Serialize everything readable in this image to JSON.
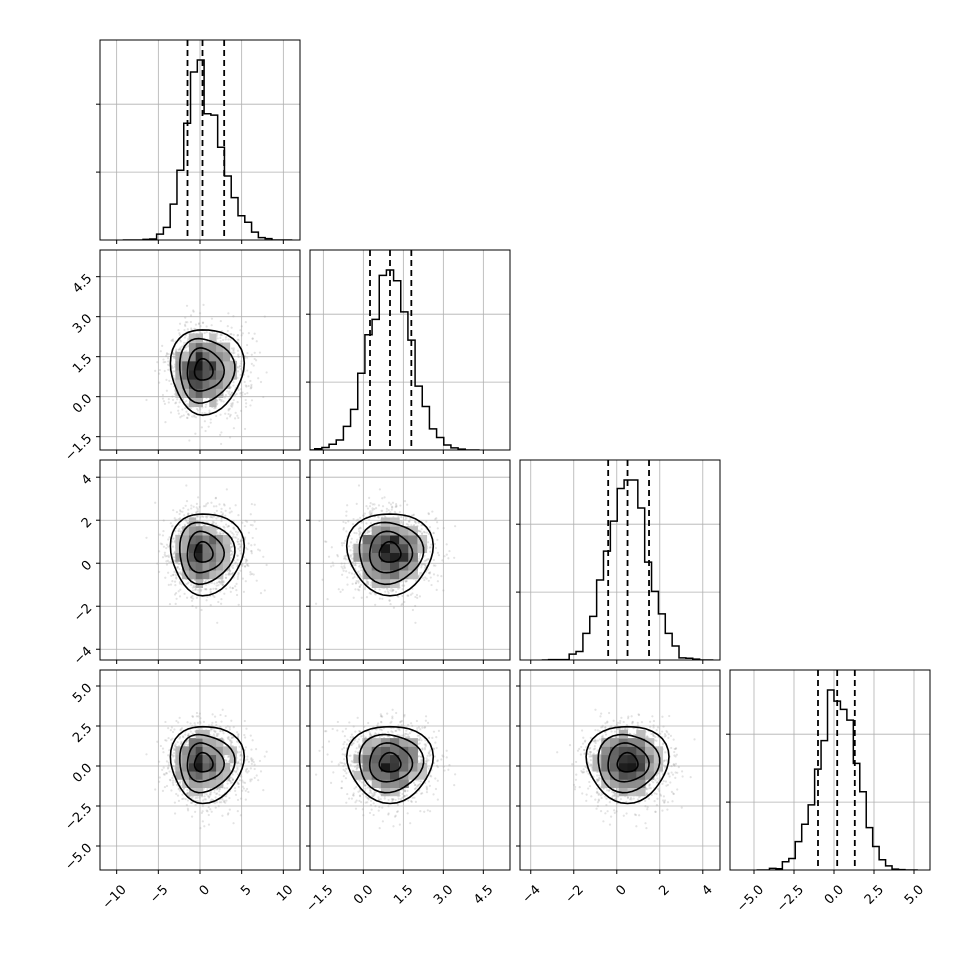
{
  "chart_data": {
    "type": "corner",
    "title": "",
    "parameters": [
      {
        "name": "",
        "range": [
          -12,
          12
        ],
        "ticks": [
          -10,
          -5,
          0,
          5,
          10
        ],
        "tick_labels": [
          "−10",
          "−5",
          "0",
          "5",
          "10"
        ],
        "mean": 0.3,
        "std": 1.9,
        "skew_right": true,
        "quantiles": [
          -1.5,
          0.3,
          2.9
        ]
      },
      {
        "name": "",
        "range": [
          -2,
          5.5
        ],
        "ticks": [
          -1.5,
          0.0,
          1.5,
          3.0,
          4.5
        ],
        "tick_labels": [
          "−1.5",
          "0.0",
          "1.5",
          "3.0",
          "4.5"
        ],
        "mean": 1.0,
        "std": 0.8,
        "skew_right": false,
        "quantiles": [
          0.25,
          1.0,
          1.8
        ]
      },
      {
        "name": "",
        "range": [
          -4.5,
          4.8
        ],
        "ticks": [
          -4,
          -2,
          0,
          2,
          4
        ],
        "tick_labels": [
          "−4",
          "−2",
          "0",
          "2",
          "4"
        ],
        "mean": 0.5,
        "std": 0.95,
        "skew_right": false,
        "quantiles": [
          -0.4,
          0.5,
          1.5
        ]
      },
      {
        "name": "",
        "range": [
          -6.5,
          6.0
        ],
        "ticks": [
          -5.0,
          -2.5,
          0.0,
          2.5,
          5.0
        ],
        "tick_labels": [
          "−5.0",
          "−2.5",
          "0.0",
          "2.5",
          "5.0"
        ],
        "mean": 0.2,
        "std": 1.2,
        "skew_right": false,
        "quantiles": [
          -1.0,
          0.2,
          1.3
        ]
      }
    ],
    "histogram_bins": 25,
    "contour_levels": 4,
    "grid": true,
    "quantile_line_style": "dashed"
  }
}
